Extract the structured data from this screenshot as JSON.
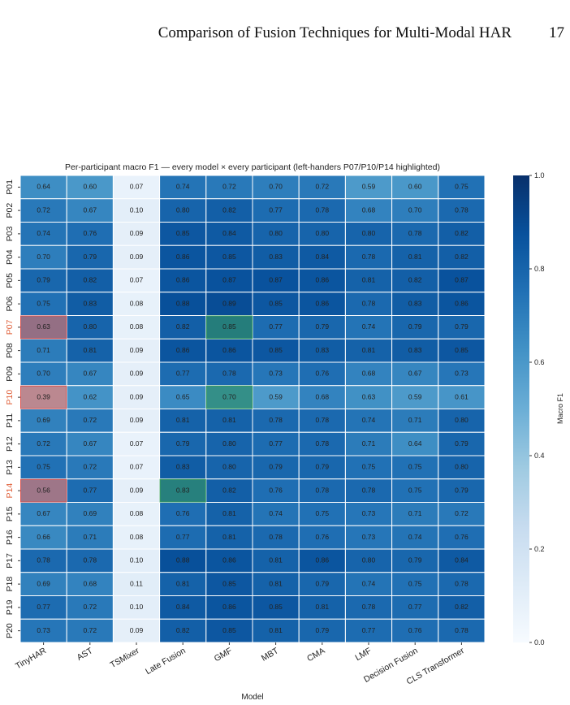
{
  "page_header": {
    "title": "Comparison of Fusion Techniques for Multi-Modal HAR",
    "page_number": "17"
  },
  "chart_data": {
    "type": "heatmap",
    "title": "Per-participant macro F1 — every model × every participant (left-handers P07/P10/P14 highlighted)",
    "x_label": "Model",
    "colorbar_label": "Macro F1",
    "colormap": [
      "#f7fbff",
      "#deebf7",
      "#c6dbef",
      "#9ecae1",
      "#6baed6",
      "#4292c6",
      "#2171b5",
      "#08519c",
      "#08306b"
    ],
    "vlim": [
      0,
      1
    ],
    "colorbar_ticks": [
      {
        "value": 0,
        "label": "0.0"
      },
      0.2,
      0.4,
      0.6,
      0.8,
      {
        "value": 1,
        "label": "1.0"
      }
    ],
    "columns": [
      "TinyHAR",
      "AST",
      "TSMixer",
      "Late Fusion",
      "GMF",
      "MBT",
      "CMA",
      "LMF",
      "Decision Fusion",
      "CLS Transformer"
    ],
    "rows": [
      "P01",
      "P02",
      "P03",
      "P04",
      "P05",
      "P06",
      "P07",
      "P08",
      "P09",
      "P10",
      "P11",
      "P12",
      "P13",
      "P14",
      "P15",
      "P16",
      "P17",
      "P18",
      "P19",
      "P20"
    ],
    "highlight_rows": [
      "P07",
      "P10",
      "P14"
    ],
    "highlight_row_label_color": "#e0603a",
    "highlights": [
      {
        "row": "P07",
        "column": "TinyHAR",
        "color": "#d9534f"
      },
      {
        "row": "P07",
        "column": "GMF",
        "color": "#3a9d5d"
      },
      {
        "row": "P10",
        "column": "TinyHAR",
        "color": "#d9534f"
      },
      {
        "row": "P10",
        "column": "GMF",
        "color": "#3a9d5d"
      },
      {
        "row": "P14",
        "column": "TinyHAR",
        "color": "#d9534f"
      },
      {
        "row": "P14",
        "column": "Late Fusion",
        "color": "#3a9d5d"
      }
    ],
    "values": [
      [
        0.64,
        0.6,
        0.07,
        0.74,
        0.72,
        0.7,
        0.72,
        0.59,
        0.6,
        0.75
      ],
      [
        0.72,
        0.67,
        0.1,
        0.8,
        0.82,
        0.77,
        0.78,
        0.68,
        0.7,
        0.78
      ],
      [
        0.74,
        0.76,
        0.09,
        0.85,
        0.84,
        0.8,
        0.8,
        0.8,
        0.78,
        0.82
      ],
      [
        0.7,
        0.79,
        0.09,
        0.86,
        0.85,
        0.83,
        0.84,
        0.78,
        0.81,
        0.82
      ],
      [
        0.79,
        0.82,
        0.07,
        0.86,
        0.87,
        0.87,
        0.86,
        0.81,
        0.82,
        0.87
      ],
      [
        0.75,
        0.83,
        0.08,
        0.88,
        0.89,
        0.85,
        0.86,
        0.78,
        0.83,
        0.86
      ],
      [
        0.63,
        0.8,
        0.08,
        0.82,
        0.85,
        0.77,
        0.79,
        0.74,
        0.79,
        0.79
      ],
      [
        0.71,
        0.81,
        0.09,
        0.86,
        0.86,
        0.85,
        0.83,
        0.81,
        0.83,
        0.85
      ],
      [
        0.7,
        0.67,
        0.09,
        0.77,
        0.78,
        0.73,
        0.76,
        0.68,
        0.67,
        0.73
      ],
      [
        0.39,
        0.62,
        0.09,
        0.65,
        0.7,
        0.59,
        0.68,
        0.63,
        0.59,
        0.61
      ],
      [
        0.69,
        0.72,
        0.09,
        0.81,
        0.81,
        0.78,
        0.78,
        0.74,
        0.71,
        0.8
      ],
      [
        0.72,
        0.67,
        0.07,
        0.79,
        0.8,
        0.77,
        0.78,
        0.71,
        0.64,
        0.79
      ],
      [
        0.75,
        0.72,
        0.07,
        0.83,
        0.8,
        0.79,
        0.79,
        0.75,
        0.75,
        0.8
      ],
      [
        0.56,
        0.77,
        0.09,
        0.83,
        0.82,
        0.76,
        0.78,
        0.78,
        0.75,
        0.79
      ],
      [
        0.67,
        0.69,
        0.08,
        0.76,
        0.81,
        0.74,
        0.75,
        0.73,
        0.71,
        0.72
      ],
      [
        0.66,
        0.71,
        0.08,
        0.77,
        0.81,
        0.78,
        0.76,
        0.73,
        0.74,
        0.76
      ],
      [
        0.78,
        0.78,
        0.1,
        0.88,
        0.86,
        0.81,
        0.86,
        0.8,
        0.79,
        0.84
      ],
      [
        0.69,
        0.68,
        0.11,
        0.81,
        0.85,
        0.81,
        0.79,
        0.74,
        0.75,
        0.78
      ],
      [
        0.77,
        0.72,
        0.1,
        0.84,
        0.86,
        0.85,
        0.81,
        0.78,
        0.77,
        0.82
      ],
      [
        0.73,
        0.72,
        0.09,
        0.82,
        0.85,
        0.81,
        0.79,
        0.77,
        0.76,
        0.78
      ]
    ],
    "value_labels": [
      [
        "0.64",
        "0.60",
        "0.07",
        "0.74",
        "0.72",
        "0.70",
        "0.72",
        "0.59",
        "0.60",
        "0.75"
      ],
      [
        "0.72",
        "0.67",
        "0.10",
        "0.80",
        "0.82",
        "0.77",
        "0.78",
        "0.68",
        "0.70",
        "0.78"
      ],
      [
        "0.74",
        "0.76",
        "0.09",
        "0.85",
        "0.84",
        "0.80",
        "0.80",
        "0.80",
        "0.78",
        "0.82"
      ],
      [
        "0.70",
        "0.79",
        "0.09",
        "0.86",
        "0.85",
        "0.83",
        "0.84",
        "0.78",
        "0.81",
        "0.82"
      ],
      [
        "0.79",
        "0.82",
        "0.07",
        "0.86",
        "0.87",
        "0.87",
        "0.86",
        "0.81",
        "0.82",
        "0.87"
      ],
      [
        "0.75",
        "0.83",
        "0.08",
        "0.88",
        "0.89",
        "0.85",
        "0.86",
        "0.78",
        "0.83",
        "0.86"
      ],
      [
        "0.63",
        "0.80",
        "0.08",
        "0.82",
        "0.85",
        "0.77",
        "0.79",
        "0.74",
        "0.79",
        "0.79"
      ],
      [
        "0.71",
        "0.81",
        "0.09",
        "0.86",
        "0.86",
        "0.85",
        "0.83",
        "0.81",
        "0.83",
        "0.85"
      ],
      [
        "0.70",
        "0.67",
        "0.09",
        "0.77",
        "0.78",
        "0.73",
        "0.76",
        "0.68",
        "0.67",
        "0.73"
      ],
      [
        "0.39",
        "0.62",
        "0.09",
        "0.65",
        "0.70",
        "0.59",
        "0.68",
        "0.63",
        "0.59",
        "0.61"
      ],
      [
        "0.69",
        "0.72",
        "0.09",
        "0.81",
        "0.81",
        "0.78",
        "0.78",
        "0.74",
        "0.71",
        "0.80"
      ],
      [
        "0.72",
        "0.67",
        "0.07",
        "0.79",
        "0.80",
        "0.77",
        "0.78",
        "0.71",
        "0.64",
        "0.79"
      ],
      [
        "0.75",
        "0.72",
        "0.07",
        "0.83",
        "0.80",
        "0.79",
        "0.79",
        "0.75",
        "0.75",
        "0.80"
      ],
      [
        "0.56",
        "0.77",
        "0.09",
        "0.83",
        "0.82",
        "0.76",
        "0.78",
        "0.78",
        "0.75",
        "0.79"
      ],
      [
        "0.67",
        "0.69",
        "0.08",
        "0.76",
        "0.81",
        "0.74",
        "0.75",
        "0.73",
        "0.71",
        "0.72"
      ],
      [
        "0.66",
        "0.71",
        "0.08",
        "0.77",
        "0.81",
        "0.78",
        "0.76",
        "0.73",
        "0.74",
        "0.76"
      ],
      [
        "0.78",
        "0.78",
        "0.10",
        "0.88",
        "0.86",
        "0.81",
        "0.86",
        "0.80",
        "0.79",
        "0.84"
      ],
      [
        "0.69",
        "0.68",
        "0.11",
        "0.81",
        "0.85",
        "0.81",
        "0.79",
        "0.74",
        "0.75",
        "0.78"
      ],
      [
        "0.77",
        "0.72",
        "0.10",
        "0.84",
        "0.86",
        "0.85",
        "0.81",
        "0.78",
        "0.77",
        "0.82"
      ],
      [
        "0.73",
        "0.72",
        "0.09",
        "0.82",
        "0.85",
        "0.81",
        "0.79",
        "0.77",
        "0.76",
        "0.78"
      ]
    ]
  }
}
